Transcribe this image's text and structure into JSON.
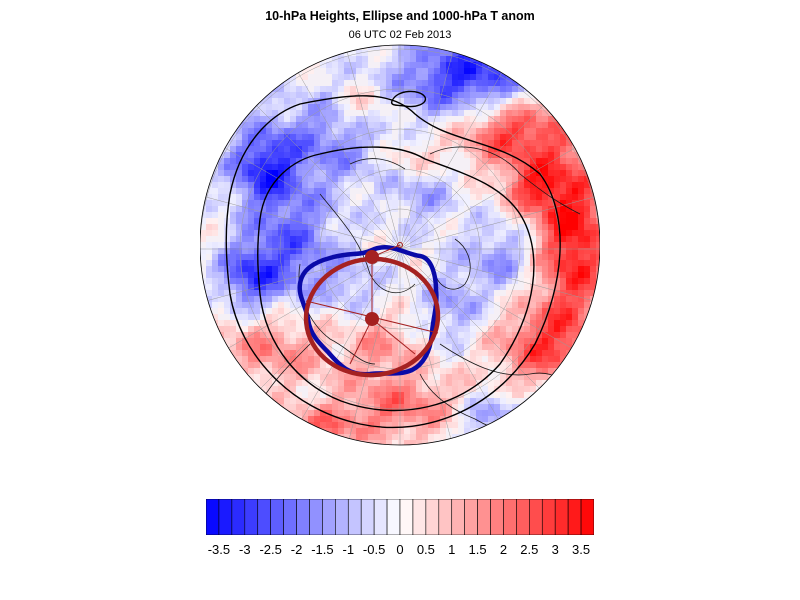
{
  "title": "10-hPa Heights, Ellipse and 1000-hPa T anom",
  "subtitle": "06 UTC 02 Feb 2013",
  "colors": {
    "negative": "#0000ff",
    "positive": "#ff0000",
    "neutral": "#ffffff",
    "height_contour": "#000000",
    "vortex_edge": "#0a0aa8",
    "ellipse": "#a52121",
    "gridline": "#9a9a9a",
    "coastline": "#1a1a1a"
  },
  "legend": {
    "colorbar_levels": [
      -3.75,
      -3.5,
      -3.25,
      -3,
      -2.75,
      -2.5,
      -2.25,
      -2,
      -1.75,
      -1.5,
      -1.25,
      -1,
      -0.75,
      -0.5,
      -0.25,
      0,
      0.25,
      0.5,
      0.75,
      1,
      1.25,
      1.5,
      1.75,
      2,
      2.25,
      2.5,
      2.75,
      3,
      3.25,
      3.5,
      3.75
    ],
    "tick_labels": [
      "-3.5",
      "-3",
      "-2.5",
      "-2",
      "-1.5",
      "-1",
      "-0.5",
      "0",
      "0.5",
      "1",
      "1.5",
      "2",
      "2.5",
      "3",
      "3.5"
    ]
  },
  "map": {
    "projection": "north polar orthographic",
    "field": "1000-hPa T anom"
  }
}
